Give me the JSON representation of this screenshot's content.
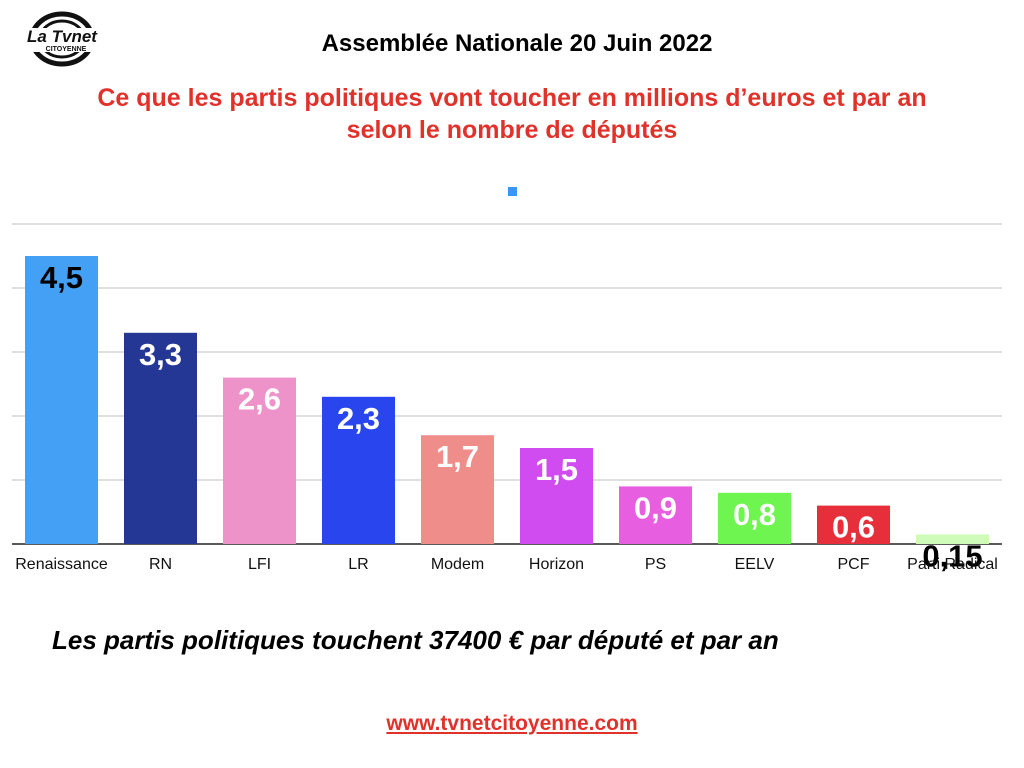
{
  "logo": {
    "line1": "La Tvnet",
    "line2": "CITOYENNE"
  },
  "header": {
    "title": "Assemblée Nationale 20 Juin 2022"
  },
  "subtitle": {
    "line1": "Ce que les partis politiques vont toucher en millions d’euros et par an",
    "line2": "selon le nombre de députés"
  },
  "footer": {
    "text": "Les partis politiques touchent 37400 € par député et par an",
    "website": "www.tvnetcitoyenne.com"
  },
  "colors": {
    "title_red": "#e0322b",
    "legend": "#3b96f3"
  },
  "chart_data": {
    "type": "bar",
    "categories": [
      "Renaissance",
      "RN",
      "LFI",
      "LR",
      "Modem",
      "Horizon",
      "PS",
      "EELV",
      "PCF",
      "Parti Radical"
    ],
    "values": [
      4.5,
      3.3,
      2.6,
      2.3,
      1.7,
      1.5,
      0.9,
      0.8,
      0.6,
      0.15
    ],
    "value_labels": [
      "4,5",
      "3,3",
      "2,6",
      "2,3",
      "1,7",
      "1,5",
      "0,9",
      "0,8",
      "0,6",
      "0,15"
    ],
    "bar_colors": [
      "#43a0f5",
      "#253795",
      "#ee93c9",
      "#2845ee",
      "#ef8d8a",
      "#d04cf1",
      "#e85ee0",
      "#6ff54f",
      "#e62f3b",
      "#cffcb9"
    ],
    "label_colors": [
      "#000000",
      "#ffffff",
      "#ffffff",
      "#ffffff",
      "#ffffff",
      "#ffffff",
      "#ffffff",
      "#ffffff",
      "#ffffff",
      "#000000"
    ],
    "ylim": [
      0,
      5
    ],
    "grid": true,
    "legend_position": "top-center"
  }
}
